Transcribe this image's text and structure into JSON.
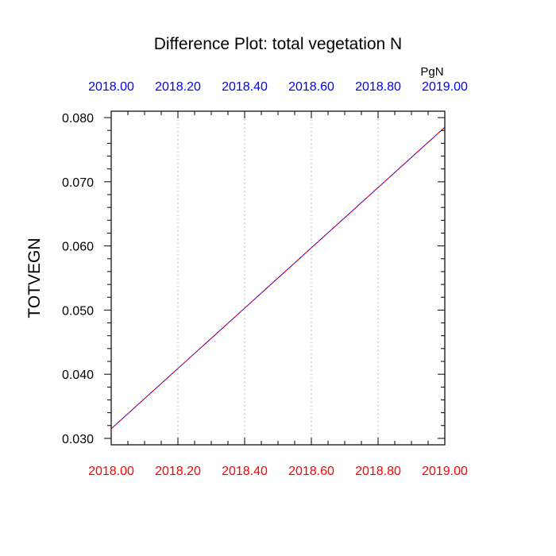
{
  "chart_data": {
    "type": "line",
    "title": "Difference Plot: total vegetation N",
    "ylabel": "TOTVEGN",
    "units": "PgN",
    "xlim": [
      2018.0,
      2019.0
    ],
    "ylim": [
      0.029,
      0.081
    ],
    "grid": "vertical-dotted",
    "x_ticks": [
      2018.0,
      2018.2,
      2018.4,
      2018.6,
      2018.8,
      2019.0
    ],
    "x_tick_labels": [
      "2018.00",
      "2018.20",
      "2018.40",
      "2018.60",
      "2018.80",
      "2019.00"
    ],
    "y_ticks": [
      0.03,
      0.04,
      0.05,
      0.06,
      0.07,
      0.08
    ],
    "y_tick_labels": [
      "0.030",
      "0.040",
      "0.050",
      "0.060",
      "0.070",
      "0.080"
    ],
    "bottom_axis_color": "#ff0000",
    "top_axis_color": "#0000ff",
    "series": [
      {
        "x": [
          2018.0,
          2019.0
        ],
        "y": [
          0.0315,
          0.0785
        ],
        "color": "#0000ff",
        "style": "solid"
      },
      {
        "x": [
          2018.0,
          2019.0
        ],
        "y": [
          0.0315,
          0.0785
        ],
        "color": "#ff0000",
        "style": "dashed"
      }
    ]
  }
}
